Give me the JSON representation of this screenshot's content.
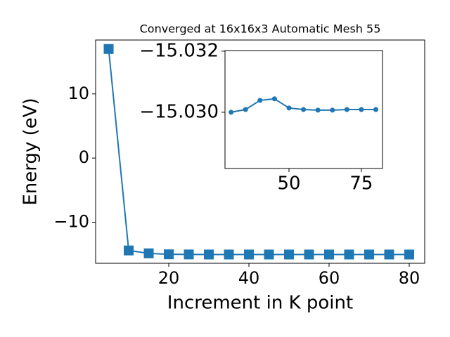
{
  "chart_data": [
    {
      "type": "line",
      "title": "Converged at 16x16x3 Automatic Mesh 55",
      "x_label": "Increment in K point",
      "y_label": "Energy (eV)",
      "x": [
        5,
        10,
        15,
        20,
        25,
        30,
        35,
        40,
        45,
        50,
        55,
        60,
        65,
        70,
        75,
        80
      ],
      "series": [
        {
          "color": "#1f77b4",
          "marker": "square",
          "values": [
            17,
            -14.4,
            -14.85,
            -15.0,
            -15.02,
            -15.03,
            -15.03009,
            -15.03039,
            -15.03044,
            -15.03014,
            -15.03009,
            -15.03007,
            -15.03007,
            -15.03009,
            -15.03009,
            -15.03009
          ]
        }
      ],
      "xlim": [
        1.75,
        83.86
      ],
      "ylim": [
        -16.4,
        18.4
      ],
      "xticks": [
        20,
        40,
        60,
        80
      ],
      "yticks": [
        {
          "value": -10,
          "label": "−10"
        },
        0,
        10
      ]
    },
    {
      "type": "line",
      "x": [
        30,
        35,
        40,
        45,
        50,
        55,
        60,
        65,
        70,
        75,
        80
      ],
      "series": [
        {
          "color": "#1f77b4",
          "marker": "circle",
          "values": [
            -15.03,
            -15.03009,
            -15.03039,
            -15.03044,
            -15.03014,
            -15.03009,
            -15.03007,
            -15.03007,
            -15.03009,
            -15.03009,
            -15.03009
          ]
        }
      ],
      "xlim": [
        27.9,
        82.3
      ],
      "ylim": [
        -15.02816,
        -15.03202
      ],
      "xticks": [
        50,
        75
      ],
      "yticks": [
        {
          "value": -15.032,
          "label": "−15.032"
        },
        {
          "value": -15.03,
          "label": "−15.030"
        }
      ]
    }
  ]
}
